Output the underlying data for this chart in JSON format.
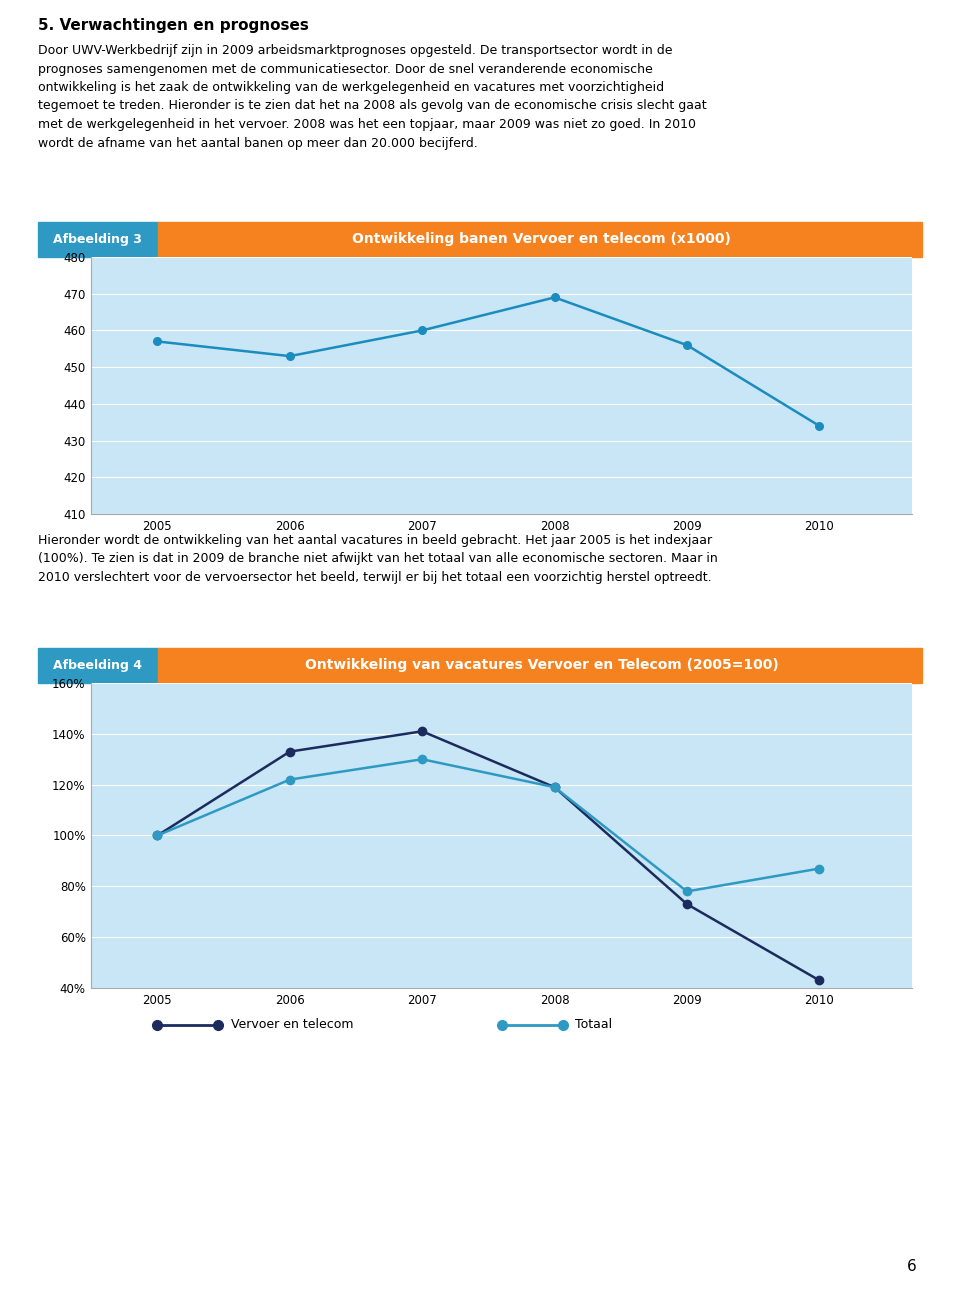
{
  "page_title": "5. Verwachtingen en prognoses",
  "para1_lines": [
    "Door UWV-Werkbedrijf zijn in 2009 arbeidsmarktprognoses opgesteld. De transportsector wordt in de",
    "prognoses samengenomen met de communicatiesector. Door de snel veranderende economische",
    "ontwikkeling is het zaak de ontwikkeling van de werkgelegenheid en vacatures met voorzichtigheid",
    "tegemoet te treden. Hieronder is te zien dat het na 2008 als gevolg van de economische crisis slecht gaat",
    "met de werkgelegenheid in het vervoer. 2008 was het een topjaar, maar 2009 was niet zo goed. In 2010",
    "wordt de afname van het aantal banen op meer dan 20.000 becijferd."
  ],
  "para2_lines": [
    "Hieronder wordt de ontwikkeling van het aantal vacatures in beeld gebracht. Het jaar 2005 is het indexjaar",
    "(100%). Te zien is dat in 2009 de branche niet afwijkt van het totaal van alle economische sectoren. Maar in",
    "2010 verslechtert voor de vervoersector het beeld, terwijl er bij het totaal een voorzichtig herstel optreedt."
  ],
  "chart1": {
    "label_box_color": "#2E9AC4",
    "label_box_text": "Afbeelding 3",
    "title_box_color": "#F5821F",
    "title_box_text": "Ontwikkeling banen Vervoer en telecom (x1000)",
    "bg_color": "#C8E6F5",
    "years": [
      2005,
      2006,
      2007,
      2008,
      2009,
      2010
    ],
    "values": [
      457,
      453,
      460,
      469,
      456,
      434
    ],
    "line_color": "#1B8CBE",
    "marker_color": "#1B8CBE",
    "ylim": [
      410,
      480
    ],
    "yticks": [
      410,
      420,
      430,
      440,
      450,
      460,
      470,
      480
    ],
    "grid_color": "#FFFFFF"
  },
  "chart2": {
    "label_box_color": "#2E9AC4",
    "label_box_text": "Afbeelding 4",
    "title_box_color": "#F5821F",
    "title_box_text": "Ontwikkeling van vacatures Vervoer en Telecom (2005=100)",
    "bg_color": "#C8E6F5",
    "years": [
      2005,
      2006,
      2007,
      2008,
      2009,
      2010
    ],
    "vervoer_values": [
      100,
      133,
      141,
      119,
      73,
      43
    ],
    "totaal_values": [
      100,
      122,
      130,
      119,
      78,
      87
    ],
    "vervoer_color": "#1C2B5E",
    "totaal_color": "#2E9AC4",
    "ylim": [
      40,
      160
    ],
    "ytick_labels": [
      "40%",
      "60%",
      "80%",
      "100%",
      "120%",
      "140%",
      "160%"
    ],
    "ytick_values": [
      40,
      60,
      80,
      100,
      120,
      140,
      160
    ],
    "grid_color": "#FFFFFF",
    "legend_vervoer": "Vervoer en telecom",
    "legend_totaal": "Totaal"
  },
  "page_number": "6"
}
